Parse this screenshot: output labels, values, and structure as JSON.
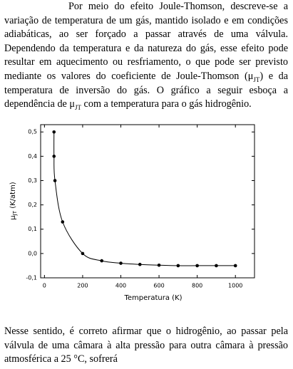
{
  "paragraphs": [
    [
      "Por meio do efeito Joule-Thomson, descreve-se a variação de temperatura de um gás, mantido isolado e em condições adiabáticas, ao ser forçado a passar através de uma válvula. Dependendo da temperatura e da natureza do gás, esse efeito pode resultar em aquecimento ou resfriamento, o que pode ser previsto mediante os valores do coeficiente de Joule-Thomson (μ",
      "JT",
      ") e da temperatura de inversão do gás. O gráfico a seguir esboça a dependência de μ",
      "JT",
      " com a temperatura para o gás hidrogênio."
    ],
    [
      "Nesse sentido, é correto afirmar que o hidrogênio, ao passar pela válvula de uma câmara à alta pressão para outra câmara à pressão atmosférica a 25 °C, sofrerá"
    ]
  ],
  "chart_data": {
    "type": "scatter",
    "x_label": "Temperatura (K)",
    "y_label": [
      "μ",
      "JT",
      " (K/atm)"
    ],
    "color": "#000000",
    "x": [
      50,
      50,
      55,
      95,
      200,
      300,
      400,
      500,
      600,
      700,
      800,
      900,
      1000
    ],
    "values": [
      0.5,
      0.4,
      0.3,
      0.13,
      0.0,
      -0.03,
      -0.04,
      -0.045,
      -0.048,
      -0.05,
      -0.05,
      -0.05,
      -0.05
    ],
    "xlim": [
      -20,
      1100
    ],
    "ylim": [
      -0.1,
      0.53
    ],
    "xticks": [
      0,
      200,
      400,
      600,
      800,
      1000
    ],
    "yticks": [
      {
        "value": -0.1,
        "label": "-0,1"
      },
      {
        "value": 0.0,
        "label": "0,0"
      },
      {
        "value": 0.1,
        "label": "0,1"
      },
      {
        "value": 0.2,
        "label": "0,2"
      },
      {
        "value": 0.3,
        "label": "0,3"
      },
      {
        "value": 0.4,
        "label": "0,4"
      },
      {
        "value": 0.5,
        "label": "0,5"
      }
    ]
  }
}
